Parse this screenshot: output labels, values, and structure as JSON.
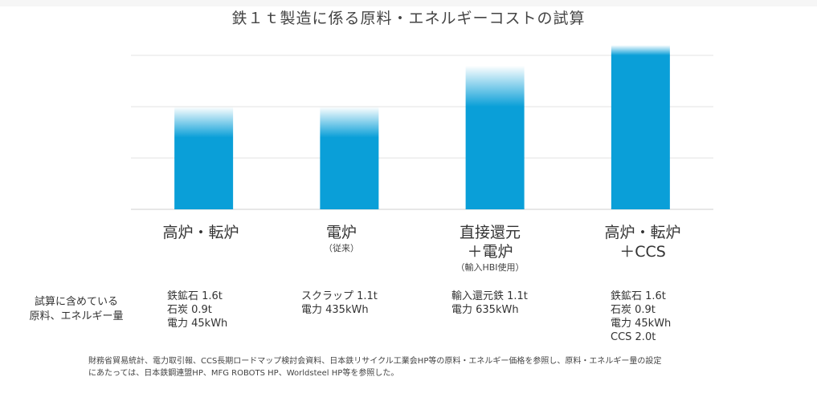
{
  "title": "鉄１ｔ製造に係る原料・エネルギーコストの試算",
  "chart_data": {
    "type": "bar",
    "title": "鉄１ｔ製造に係る原料・エネルギーコストの試算",
    "categories": [
      "高炉・転炉",
      "電炉",
      "直接還元＋電炉",
      "高炉・転炉＋CCS"
    ],
    "values": [
      2.0,
      2.0,
      2.8,
      3.2
    ],
    "solid_values": [
      1.4,
      1.4,
      2.0,
      3.0
    ],
    "ylim": [
      0,
      3.5
    ],
    "gridlines": [
      1,
      2,
      3
    ],
    "grid": true,
    "y_axis_labels_shown": false,
    "bar_color": "#0a9fd8",
    "bar_top_fade": true
  },
  "categories": [
    {
      "line1": "高炉・転炉",
      "line2": "",
      "sub": "",
      "details": [
        "鉄鉱石 1.6t",
        "石炭 0.9t",
        "電力 45kWh"
      ]
    },
    {
      "line1": "電炉",
      "line2": "",
      "sub": "（従来）",
      "details": [
        "スクラップ 1.1t",
        "電力 435kWh"
      ]
    },
    {
      "line1": "直接還元",
      "line2": "＋電炉",
      "sub": "（輸入HBI使用）",
      "details": [
        "輸入還元鉄 1.1t",
        "電力 635kWh"
      ]
    },
    {
      "line1": "高炉・転炉",
      "line2": "＋CCS",
      "sub": "",
      "details": [
        "鉄鉱石 1.6t",
        "石炭 0.9t",
        "電力 45kWh",
        "CCS 2.0t"
      ]
    }
  ],
  "row_header": {
    "line1": "試算に含めている",
    "line2": "原料、エネルギー量"
  },
  "footnote": {
    "line1": "財務省貿易統計、電力取引報、CCS長期ロードマップ検討会資料、日本鉄リサイクル工業会HP等の原料・エネルギー価格を参照し、原料・エネルギー量の設定",
    "line2": "にあたっては、日本鉄鋼連盟HP、MFG ROBOTS HP、Worldsteel HP等を参照した。"
  }
}
